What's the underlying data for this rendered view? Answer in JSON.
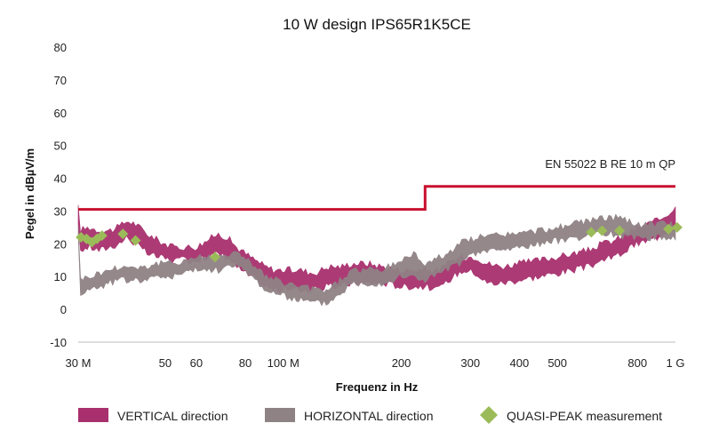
{
  "chart_data": {
    "type": "line",
    "title": "10 W design IPS65R1K5CE",
    "xlabel": "Frequenz in Hz",
    "ylabel": "Pegel in dBµV/m",
    "x_scale": "log",
    "xlim": [
      30,
      1000
    ],
    "ylim": [
      -10,
      80
    ],
    "y_ticks": [
      -10,
      0,
      10,
      20,
      30,
      40,
      50,
      60,
      70,
      80
    ],
    "x_ticks": [
      {
        "value": 30,
        "label": "30 M"
      },
      {
        "value": 50,
        "label": "50"
      },
      {
        "value": 60,
        "label": "60"
      },
      {
        "value": 80,
        "label": "80"
      },
      {
        "value": 100,
        "label": "100 M"
      },
      {
        "value": 200,
        "label": "200"
      },
      {
        "value": 300,
        "label": "300"
      },
      {
        "value": 400,
        "label": "400"
      },
      {
        "value": 500,
        "label": "500"
      },
      {
        "value": 800,
        "label": "800"
      },
      {
        "value": 1000,
        "label": "1 G"
      }
    ],
    "grid": false,
    "legend_position": "bottom",
    "limit_line": {
      "label": "EN 55022 B RE 10 m QP",
      "color": "#c8102e",
      "x": [
        30,
        230,
        230,
        1000
      ],
      "y": [
        30.5,
        30.5,
        37.5,
        37.5
      ]
    },
    "series": [
      {
        "name": "VERTICAL direction",
        "style": "band",
        "color": "#a8306e",
        "x": [
          30,
          32,
          34,
          36,
          38,
          40,
          42,
          45,
          48,
          52,
          56,
          60,
          64,
          68,
          72,
          76,
          80,
          85,
          90,
          95,
          100,
          110,
          120,
          130,
          140,
          150,
          165,
          180,
          200,
          215,
          230,
          250,
          270,
          290,
          310,
          330,
          360,
          400,
          450,
          500,
          550,
          600,
          650,
          700,
          750,
          800,
          850,
          900,
          950,
          1000
        ],
        "low": [
          18,
          19,
          18,
          19,
          20,
          22,
          20,
          17,
          16,
          15,
          15,
          15,
          16,
          17,
          16,
          13,
          11,
          9,
          7,
          6,
          6,
          6,
          6,
          7,
          7,
          8,
          8,
          8,
          7,
          7,
          7,
          6,
          10,
          12,
          11,
          8,
          8,
          9,
          10,
          11,
          12,
          13,
          15,
          16,
          18,
          20,
          21,
          22,
          24,
          25
        ],
        "high": [
          24,
          25,
          24,
          24,
          25,
          27,
          26,
          23,
          21,
          19,
          19,
          19,
          21,
          23,
          22,
          19,
          17,
          15,
          13,
          12,
          12,
          12,
          11,
          13,
          13,
          14,
          14,
          13,
          12,
          12,
          12,
          12,
          15,
          16,
          16,
          14,
          13,
          14,
          15,
          16,
          17,
          18,
          20,
          21,
          23,
          25,
          26,
          27,
          29,
          31
        ]
      },
      {
        "name": "HORIZONTAL  direction",
        "style": "band",
        "color": "#8f8285",
        "x": [
          30,
          32,
          34,
          36,
          38,
          40,
          42,
          45,
          48,
          52,
          56,
          60,
          64,
          68,
          72,
          76,
          80,
          85,
          90,
          95,
          100,
          110,
          120,
          130,
          140,
          150,
          165,
          180,
          200,
          215,
          230,
          250,
          270,
          290,
          310,
          330,
          360,
          400,
          450,
          500,
          550,
          600,
          650,
          700,
          750,
          800,
          850,
          900,
          950,
          1000
        ],
        "low": [
          5,
          6,
          7,
          8,
          9,
          9,
          9,
          9,
          10,
          10,
          11,
          12,
          12,
          12,
          13,
          13,
          12,
          9,
          6,
          5,
          4,
          3,
          2,
          2,
          5,
          8,
          8,
          8,
          10,
          10,
          9,
          11,
          13,
          15,
          17,
          18,
          18,
          19,
          20,
          21,
          22,
          22,
          23,
          23,
          22,
          22,
          22,
          22,
          22,
          22
        ],
        "high": [
          9,
          10,
          11,
          12,
          13,
          13,
          13,
          13,
          14,
          14,
          15,
          16,
          16,
          16,
          17,
          17,
          16,
          13,
          10,
          9,
          8,
          7,
          6,
          6,
          9,
          12,
          12,
          12,
          15,
          17,
          14,
          16,
          18,
          21,
          22,
          22,
          23,
          23,
          24,
          25,
          26,
          27,
          28,
          28,
          27,
          26,
          26,
          26,
          26,
          26
        ]
      },
      {
        "name": "QUASI-PEAK measurement",
        "style": "markers",
        "color": "#9bbb59",
        "x": [
          30.5,
          31.5,
          32.5,
          33.5,
          34.5,
          39,
          42,
          67,
          610,
          650,
          720,
          960,
          1010
        ],
        "y": [
          22,
          21.5,
          20.5,
          21.5,
          22.5,
          23,
          21,
          16,
          23.5,
          24,
          24,
          24.5,
          25
        ]
      }
    ]
  }
}
